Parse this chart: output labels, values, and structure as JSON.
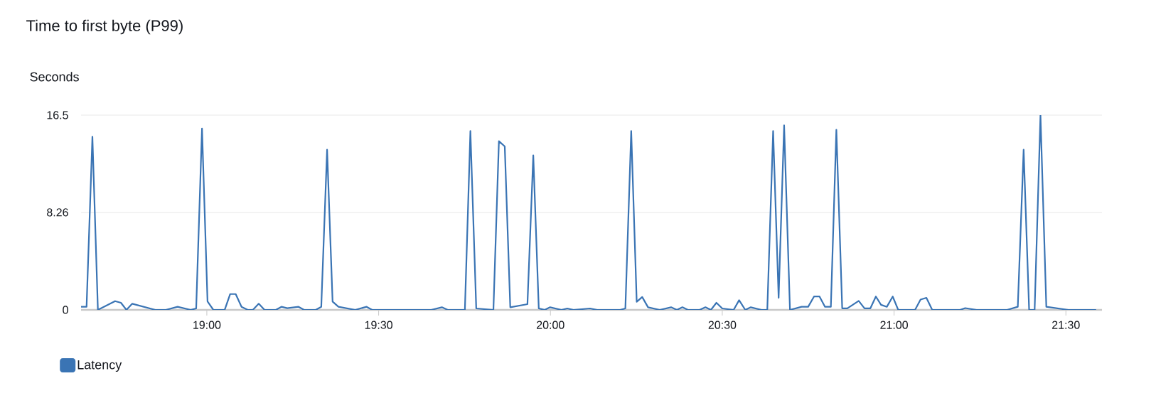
{
  "chart_data": {
    "type": "line",
    "title": "Time to first byte (P99)",
    "ylabel": "Seconds",
    "xlim": [
      18.634,
      21.605
    ],
    "xticks": [
      {
        "value": 19,
        "label": "19:00"
      },
      {
        "value": 19.5,
        "label": "19:30"
      },
      {
        "value": 20,
        "label": "20:00"
      },
      {
        "value": 20.5,
        "label": "20:30"
      },
      {
        "value": 21,
        "label": "21:00"
      },
      {
        "value": 21.5,
        "label": "21:30"
      }
    ],
    "ylim": [
      0,
      16.5
    ],
    "yticks": [
      0,
      8.26,
      16.5
    ],
    "grid": "y",
    "legend": "bottom left",
    "series": [
      {
        "name": "Latency",
        "color": "#3a74b4",
        "x": [
          18.634,
          18.65,
          18.667,
          18.683,
          18.733,
          18.75,
          18.766,
          18.783,
          18.85,
          18.881,
          18.915,
          18.953,
          18.969,
          18.986,
          19.002,
          19.019,
          19.052,
          19.068,
          19.084,
          19.101,
          19.119,
          19.134,
          19.151,
          19.168,
          19.201,
          19.217,
          19.234,
          19.267,
          19.283,
          19.317,
          19.333,
          19.35,
          19.366,
          19.383,
          19.432,
          19.465,
          19.481,
          19.653,
          19.684,
          19.701,
          19.751,
          19.767,
          19.784,
          19.834,
          19.85,
          19.867,
          19.883,
          19.933,
          19.95,
          19.966,
          19.983,
          19.999,
          20.032,
          20.049,
          20.067,
          20.115,
          20.136,
          20.203,
          20.218,
          20.235,
          20.251,
          20.267,
          20.284,
          20.318,
          20.351,
          20.368,
          20.384,
          20.4,
          20.434,
          20.451,
          20.467,
          20.483,
          20.5,
          20.533,
          20.549,
          20.567,
          20.583,
          20.614,
          20.631,
          20.648,
          20.664,
          20.68,
          20.697,
          20.731,
          20.75,
          20.767,
          20.783,
          20.799,
          20.816,
          20.832,
          20.849,
          20.864,
          20.897,
          20.914,
          20.931,
          20.947,
          20.962,
          20.979,
          20.996,
          21.012,
          21.061,
          21.077,
          21.094,
          21.111,
          21.192,
          21.207,
          21.24,
          21.329,
          21.36,
          21.377,
          21.393,
          21.409,
          21.426,
          21.443,
          21.507,
          21.588
        ],
        "values": [
          0.26,
          0.26,
          14.67,
          0,
          0.74,
          0.6,
          0,
          0.52,
          0,
          0,
          0.26,
          0,
          0.12,
          15.37,
          0.72,
          0,
          0,
          1.34,
          1.34,
          0.26,
          0,
          0,
          0.52,
          0,
          0,
          0.26,
          0.14,
          0.26,
          0,
          0,
          0.26,
          13.57,
          0.7,
          0.26,
          0,
          0.26,
          0,
          0,
          0.22,
          0,
          0,
          15.16,
          0.12,
          0,
          14.29,
          13.85,
          0.22,
          0.48,
          13.09,
          0.12,
          0,
          0.22,
          0,
          0.12,
          0,
          0.12,
          0,
          0,
          0.12,
          15.16,
          0.68,
          1.09,
          0.22,
          0,
          0.22,
          0,
          0.22,
          0,
          0,
          0.22,
          0,
          0.6,
          0.12,
          0,
          0.82,
          0,
          0.22,
          0,
          0,
          15.15,
          1.02,
          15.63,
          0,
          0.26,
          0.26,
          1.13,
          1.13,
          0.26,
          0.26,
          15.26,
          0.13,
          0.13,
          0.76,
          0.13,
          0.13,
          1.13,
          0.43,
          0.26,
          1.13,
          0,
          0,
          0.87,
          1.02,
          0,
          0,
          0.15,
          0,
          0,
          0.26,
          13.57,
          0,
          0,
          16.5,
          0.26,
          0,
          0
        ]
      }
    ]
  }
}
